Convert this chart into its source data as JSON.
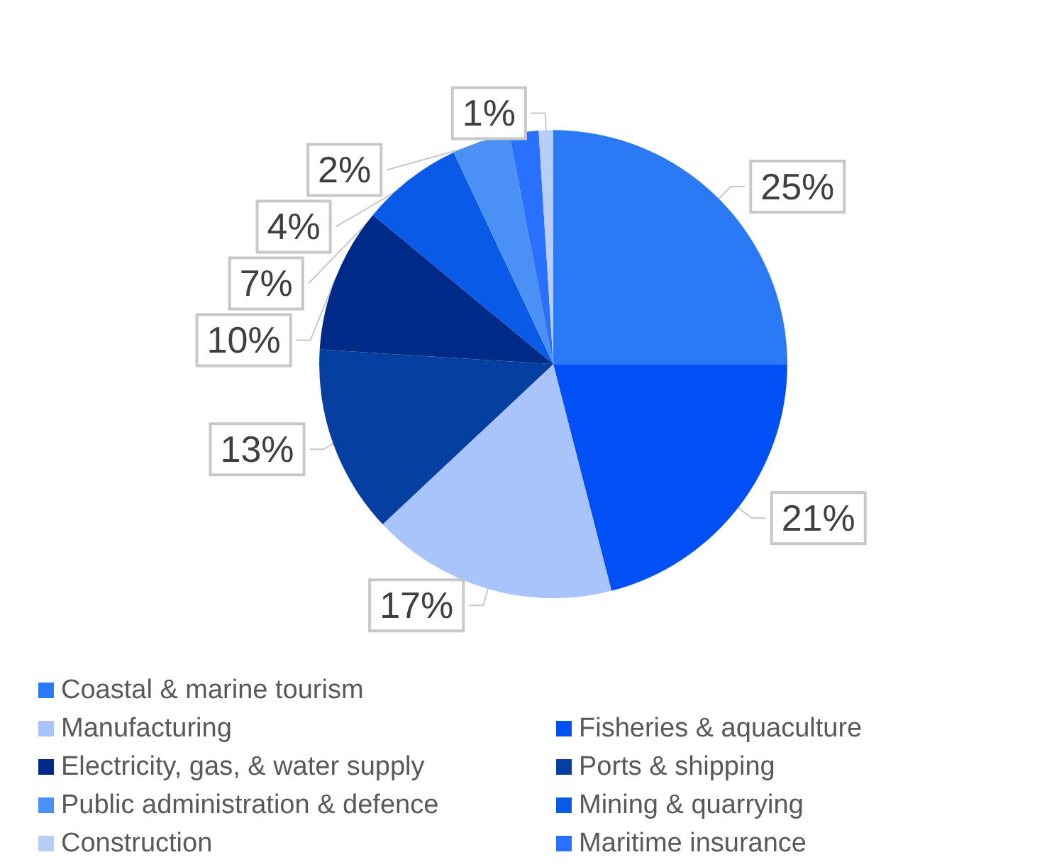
{
  "chart_data": {
    "type": "pie",
    "categories": [
      "Coastal & marine tourism",
      "Fisheries & aquaculture",
      "Manufacturing",
      "Ports & shipping",
      "Electricity, gas, & water supply",
      "Mining & quarrying",
      "Public administration & defence",
      "Maritime insurance",
      "Construction"
    ],
    "values": [
      25,
      21,
      17,
      13,
      10,
      7,
      4,
      2,
      1
    ],
    "colors": [
      "#2a7af5",
      "#0050f5",
      "#a8c4fa",
      "#0540a0",
      "#002a88",
      "#0a5ae8",
      "#4a90f5",
      "#2a70ff",
      "#b8cef8"
    ],
    "value_labels": [
      "25%",
      "21%",
      "17%",
      "13%",
      "10%",
      "7%",
      "4%",
      "2%",
      "1%"
    ],
    "legend": "bottom"
  }
}
